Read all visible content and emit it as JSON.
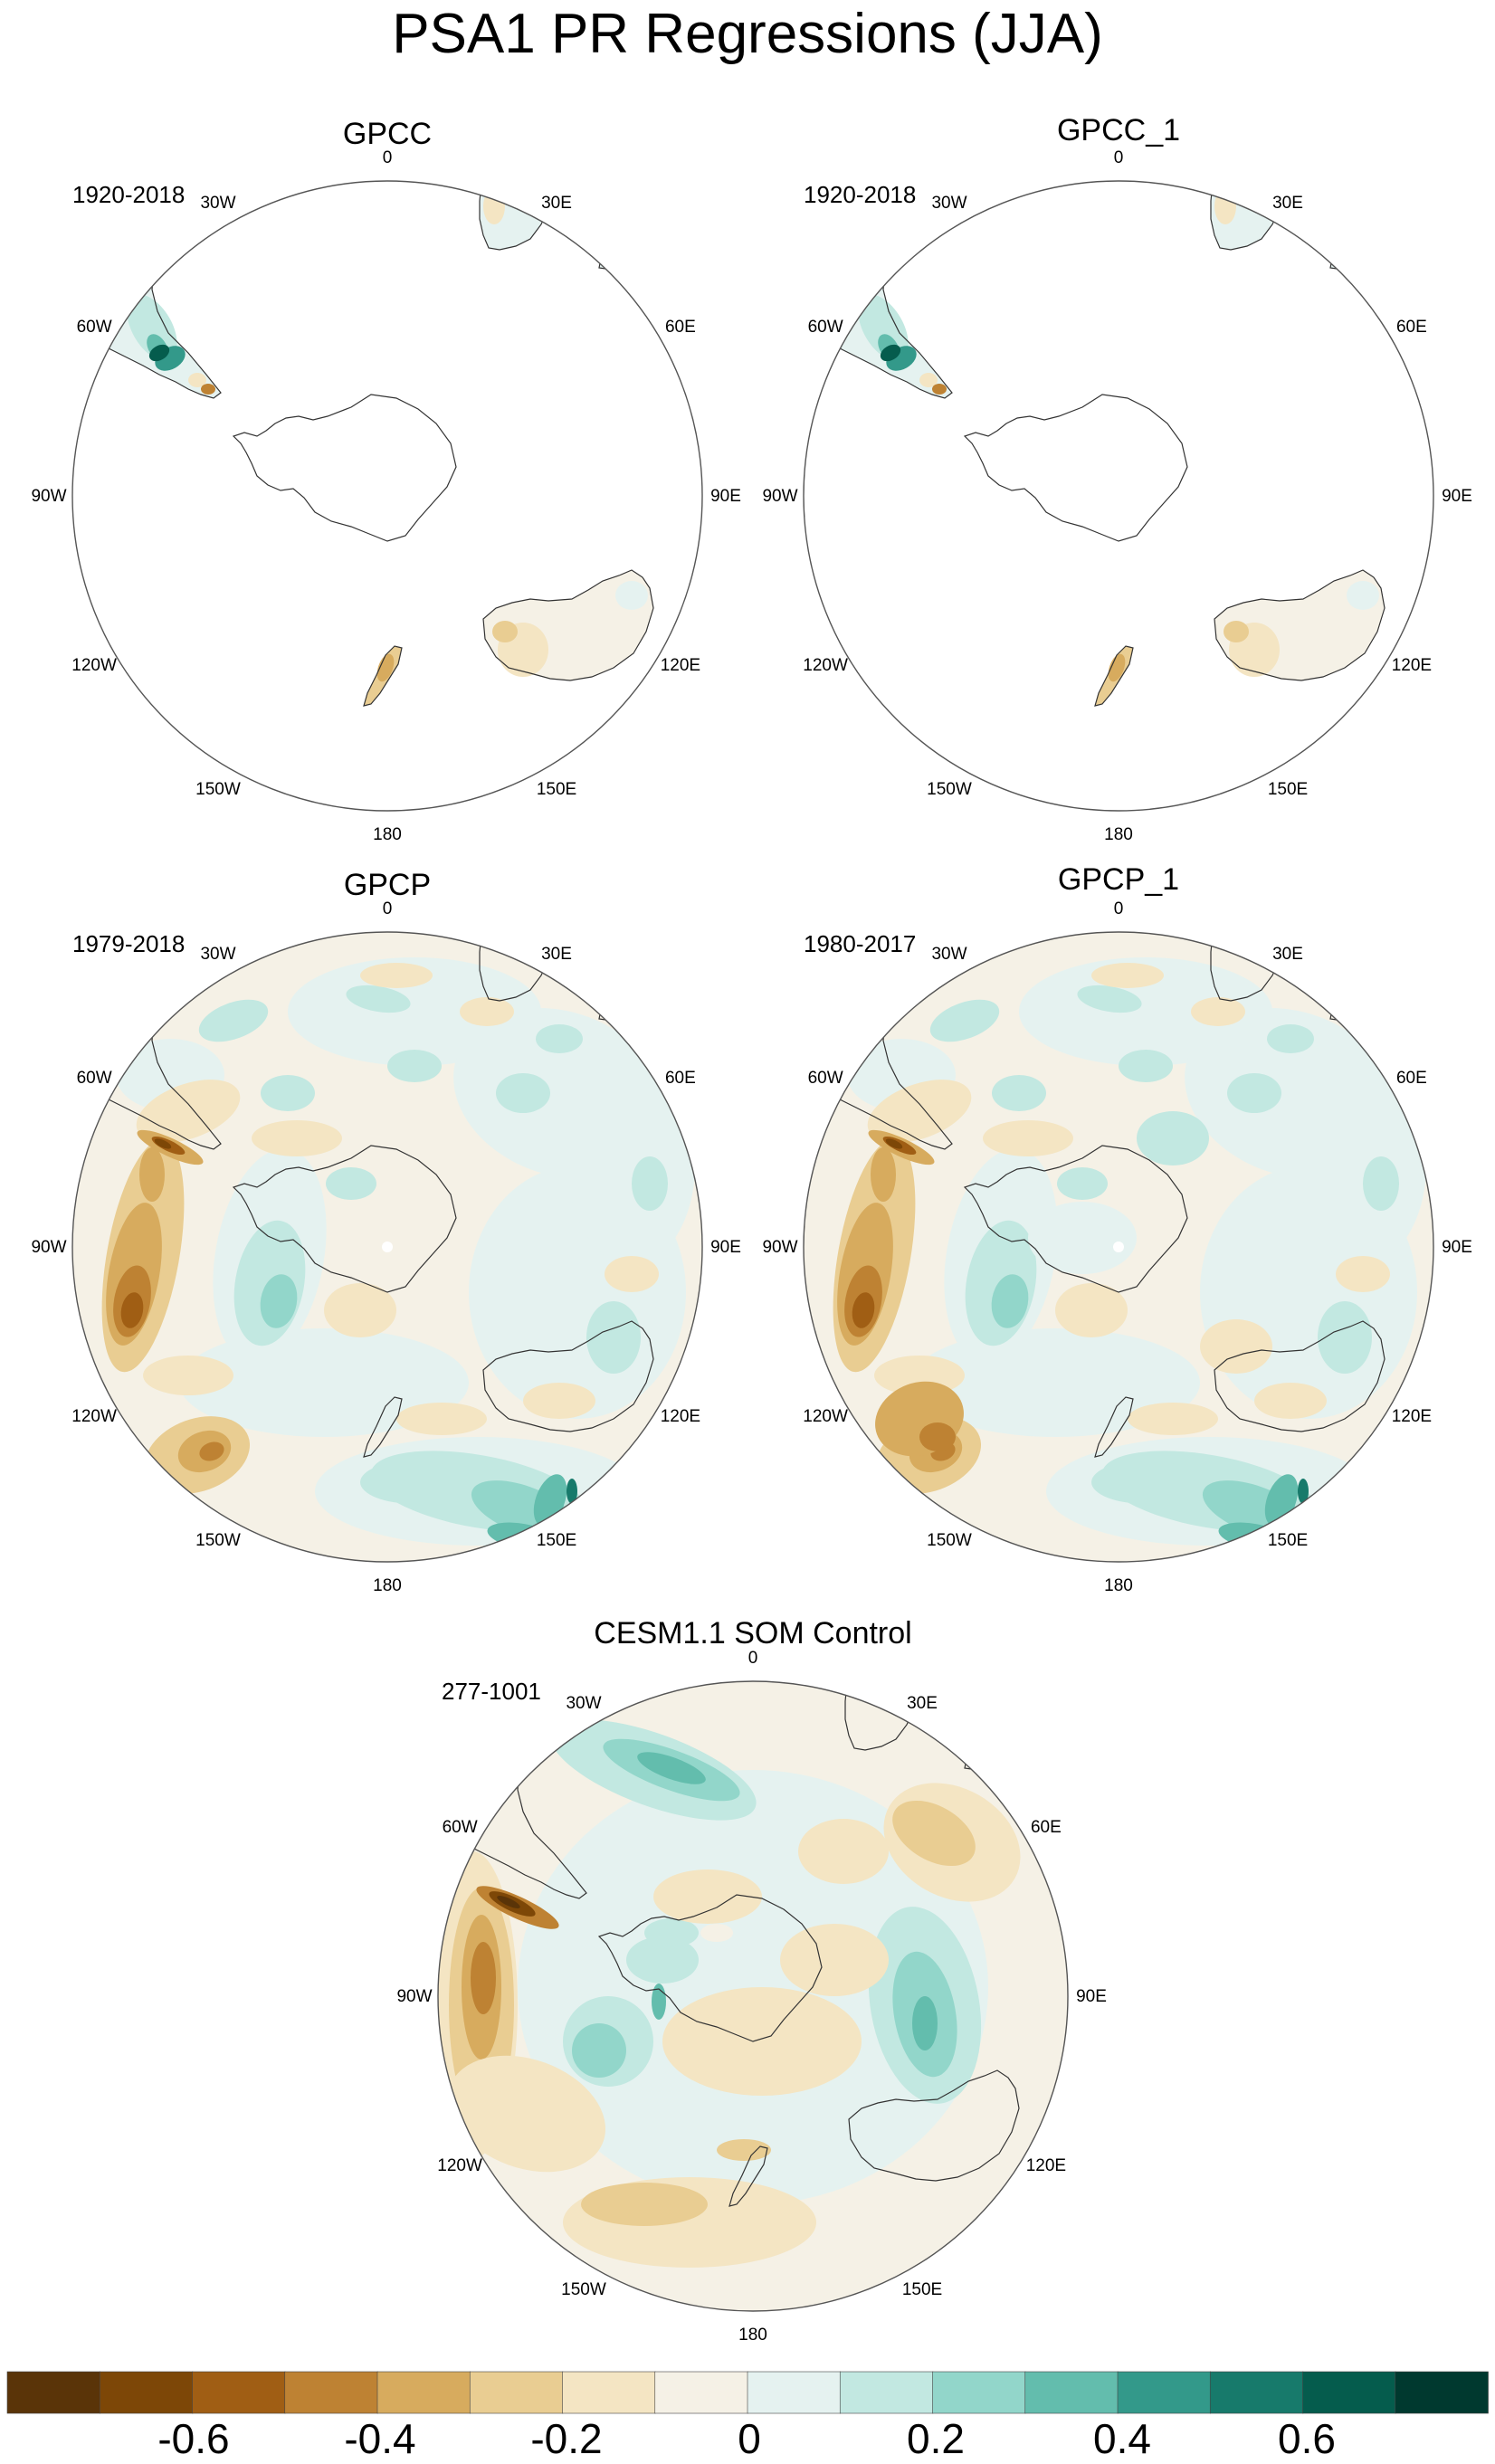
{
  "title": "PSA1 PR Regressions (JJA)",
  "panels": [
    {
      "id": "gpcc",
      "title": "GPCC",
      "period": "1920-2018",
      "field": "land"
    },
    {
      "id": "gpcc1",
      "title": "GPCC_1",
      "period": "1920-2018",
      "field": "land"
    },
    {
      "id": "gpcp",
      "title": "GPCP",
      "period": "1979-2018",
      "field": "global"
    },
    {
      "id": "gpcp1",
      "title": "GPCP_1",
      "period": "1980-2017",
      "field": "global"
    },
    {
      "id": "cesm",
      "title": "CESM1.1 SOM Control",
      "period": "277-1001",
      "field": "model"
    }
  ],
  "lon_labels": [
    "0",
    "30E",
    "60E",
    "90E",
    "120E",
    "150E",
    "180",
    "150W",
    "120W",
    "90W",
    "60W",
    "30W"
  ],
  "colorbar": {
    "colors": [
      "#5a3408",
      "#7d4707",
      "#a05e14",
      "#be8233",
      "#d7ab5e",
      "#e9cd92",
      "#f4e5c3",
      "#f5f1e6",
      "#e5f2f0",
      "#c2e8e1",
      "#92d6ca",
      "#63bdad",
      "#33998a",
      "#177a6b",
      "#055c4d",
      "#00392f"
    ],
    "tick_labels": [
      "-0.6",
      "-0.4",
      "-0.2",
      "0",
      "0.2",
      "0.4",
      "0.6"
    ],
    "tick_values": [
      -0.6,
      -0.4,
      -0.2,
      0,
      0.2,
      0.4,
      0.6
    ],
    "range": [
      -0.8,
      0.8
    ]
  }
}
